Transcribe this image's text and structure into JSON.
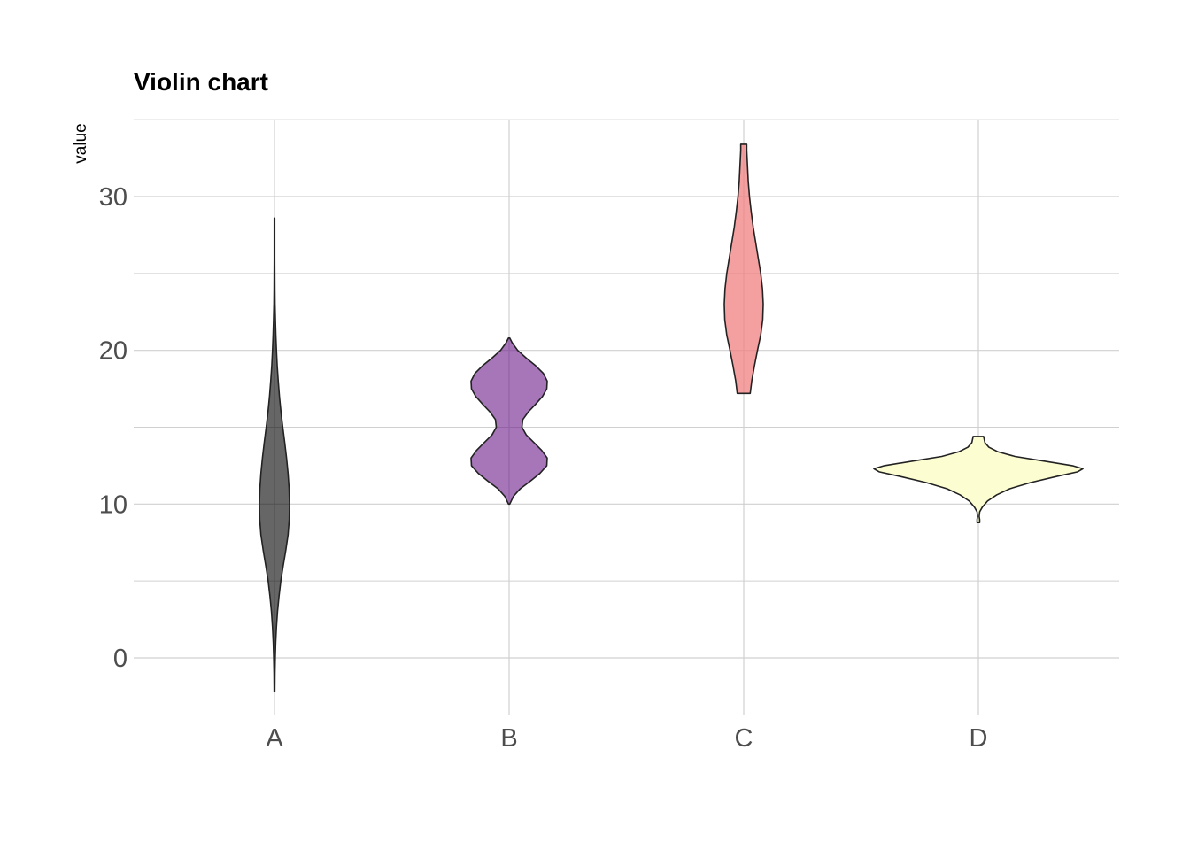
{
  "chart_data": {
    "type": "violin",
    "title": "Violin chart",
    "xlabel": "",
    "ylabel": "value",
    "categories": [
      "A",
      "B",
      "C",
      "D"
    ],
    "ylim": [
      -4,
      35
    ],
    "yticks": [
      0,
      10,
      20,
      30
    ],
    "yminor": [
      5,
      15,
      25,
      35
    ],
    "grid": true,
    "legend": "none",
    "series": [
      {
        "category": "A",
        "color": "#000000",
        "opacity": 0.6,
        "min": -2.2,
        "max": 28.6,
        "density": [
          [
            -2.2,
            0.2
          ],
          [
            -1,
            0.3
          ],
          [
            0,
            0.5
          ],
          [
            1,
            0.8
          ],
          [
            2,
            1.3
          ],
          [
            3,
            2.0
          ],
          [
            4,
            3.0
          ],
          [
            5,
            4.2
          ],
          [
            6,
            5.8
          ],
          [
            7,
            7.5
          ],
          [
            8,
            9.0
          ],
          [
            9,
            9.8
          ],
          [
            10,
            10.0
          ],
          [
            11,
            9.7
          ],
          [
            12,
            9.0
          ],
          [
            13,
            8.0
          ],
          [
            14,
            6.8
          ],
          [
            15,
            5.5
          ],
          [
            16,
            4.3
          ],
          [
            17,
            3.3
          ],
          [
            18,
            2.5
          ],
          [
            19,
            1.8
          ],
          [
            20,
            1.3
          ],
          [
            21,
            0.9
          ],
          [
            22,
            0.6
          ],
          [
            23,
            0.35
          ],
          [
            24,
            0.25
          ],
          [
            25,
            0.2
          ],
          [
            26,
            0.15
          ],
          [
            27,
            0.15
          ],
          [
            28,
            0.15
          ],
          [
            28.6,
            0.15
          ]
        ]
      },
      {
        "category": "B",
        "color": "#6a1b8a",
        "opacity": 0.6,
        "min": 10.0,
        "max": 20.8,
        "density": [
          [
            10,
            0.15
          ],
          [
            10.5,
            1.0
          ],
          [
            11,
            2.6
          ],
          [
            11.5,
            5.0
          ],
          [
            12,
            7.2
          ],
          [
            12.5,
            8.8
          ],
          [
            13,
            8.9
          ],
          [
            13.5,
            7.6
          ],
          [
            14,
            5.8
          ],
          [
            14.5,
            4.0
          ],
          [
            15,
            3.0
          ],
          [
            15.5,
            3.2
          ],
          [
            16,
            4.5
          ],
          [
            16.5,
            6.2
          ],
          [
            17,
            7.8
          ],
          [
            17.5,
            8.8
          ],
          [
            18,
            8.9
          ],
          [
            18.5,
            8.0
          ],
          [
            19,
            6.2
          ],
          [
            19.5,
            4.0
          ],
          [
            20,
            2.0
          ],
          [
            20.5,
            0.7
          ],
          [
            20.8,
            0.15
          ]
        ]
      },
      {
        "category": "C",
        "color": "#f08080",
        "opacity": 0.75,
        "min": 17.2,
        "max": 33.4,
        "density": [
          [
            17.2,
            2.6
          ],
          [
            18,
            3.2
          ],
          [
            19,
            4.3
          ],
          [
            20,
            5.5
          ],
          [
            21,
            6.8
          ],
          [
            22,
            7.6
          ],
          [
            23,
            7.8
          ],
          [
            24,
            7.5
          ],
          [
            25,
            6.8
          ],
          [
            26,
            5.8
          ],
          [
            27,
            4.8
          ],
          [
            28,
            3.8
          ],
          [
            29,
            3.0
          ],
          [
            30,
            2.3
          ],
          [
            31,
            1.8
          ],
          [
            32,
            1.5
          ],
          [
            33,
            1.2
          ],
          [
            33.4,
            1.2
          ]
        ]
      },
      {
        "category": "D",
        "color": "#fdfdd2",
        "opacity": 1,
        "min": 8.8,
        "max": 14.4,
        "density": [
          [
            8.8,
            0.5
          ],
          [
            9.0,
            0.5
          ],
          [
            9.2,
            0.3
          ],
          [
            9.5,
            0.5
          ],
          [
            9.8,
            1.5
          ],
          [
            10.2,
            3.5
          ],
          [
            10.6,
            7.0
          ],
          [
            11.0,
            12.0
          ],
          [
            11.4,
            20.0
          ],
          [
            11.8,
            30.0
          ],
          [
            12.1,
            38.0
          ],
          [
            12.3,
            40.0
          ],
          [
            12.5,
            36.0
          ],
          [
            12.8,
            25.0
          ],
          [
            13.1,
            14.0
          ],
          [
            13.4,
            7.5
          ],
          [
            13.7,
            4.0
          ],
          [
            14.0,
            2.5
          ],
          [
            14.4,
            2.0
          ]
        ]
      }
    ]
  }
}
